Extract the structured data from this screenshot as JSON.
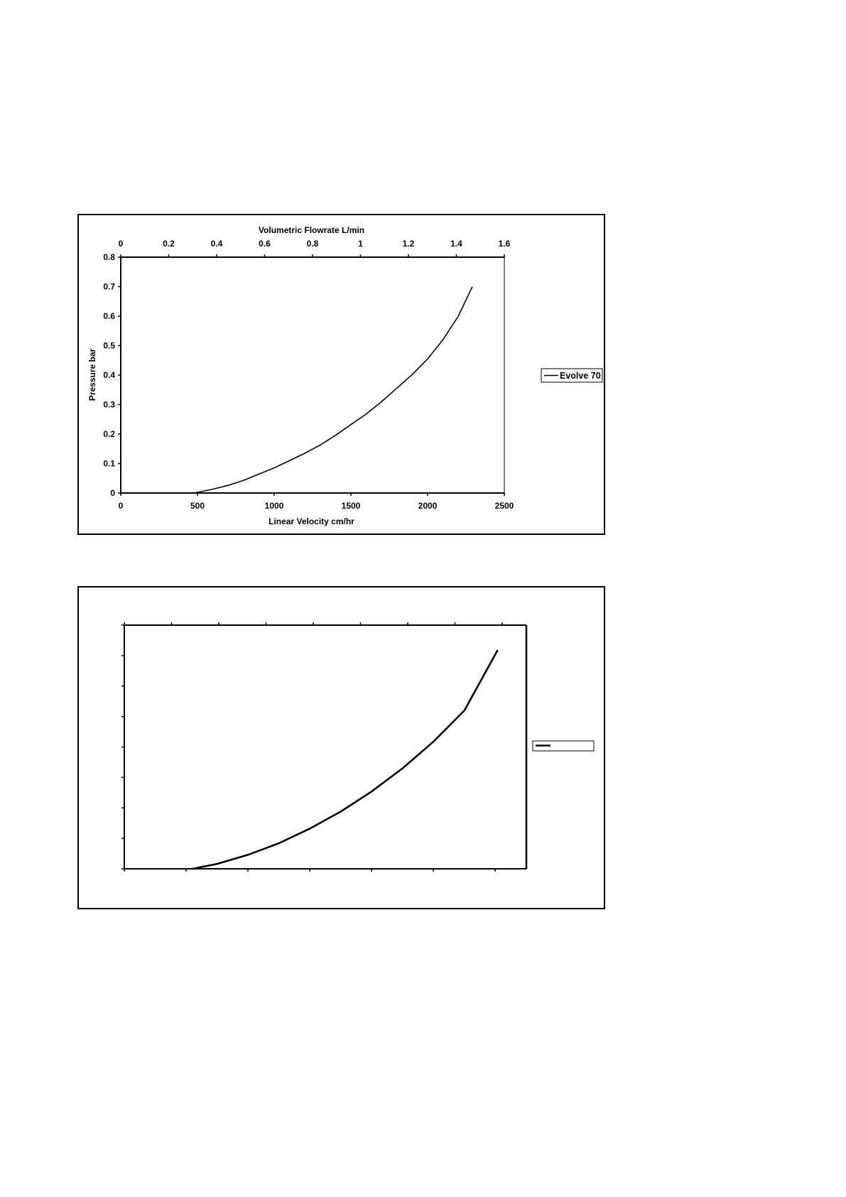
{
  "chart_data": [
    {
      "type": "line",
      "title": "",
      "xlabel": "Linear Velocity cm/hr",
      "x2label": "Volumetric Flowrate L/min",
      "ylabel": "Pressure bar",
      "xlim": [
        0,
        2500
      ],
      "x2lim": [
        0,
        1.6
      ],
      "ylim": [
        0,
        0.8
      ],
      "x_ticks": [
        "0",
        "500",
        "1000",
        "1500",
        "2000",
        "2500"
      ],
      "x2_ticks": [
        "0",
        "0.2",
        "0.4",
        "0.6",
        "0.8",
        "1",
        "1.2",
        "1.4",
        "1.6"
      ],
      "y_ticks": [
        "0",
        "0.1",
        "0.2",
        "0.3",
        "0.4",
        "0.5",
        "0.6",
        "0.7",
        "0.8"
      ],
      "grid": false,
      "legend_position": "right",
      "series": [
        {
          "name": "Evolve 70",
          "color": "#000000",
          "x": [
            475,
            600,
            700,
            800,
            900,
            1000,
            1100,
            1200,
            1300,
            1400,
            1500,
            1600,
            1700,
            1800,
            1900,
            2000,
            2100,
            2200,
            2290
          ],
          "y": [
            0.0,
            0.013,
            0.026,
            0.043,
            0.064,
            0.085,
            0.11,
            0.135,
            0.163,
            0.196,
            0.232,
            0.268,
            0.31,
            0.356,
            0.402,
            0.455,
            0.52,
            0.6,
            0.698
          ]
        }
      ]
    },
    {
      "type": "line",
      "title": "",
      "xlabel": "",
      "ylabel": "",
      "xlim": [
        0,
        6.5
      ],
      "x2lim": [
        0,
        8.5
      ],
      "ylim": [
        0,
        8
      ],
      "grid": false,
      "legend_position": "right",
      "series": [
        {
          "color": "#000000",
          "x": [
            1.1,
            1.5,
            2.0,
            2.5,
            3.0,
            3.5,
            4.0,
            4.5,
            5.0,
            5.5,
            6.03
          ],
          "y": [
            0.0,
            0.16,
            0.46,
            0.84,
            1.32,
            1.88,
            2.54,
            3.3,
            4.18,
            5.2,
            7.16
          ]
        }
      ]
    }
  ]
}
